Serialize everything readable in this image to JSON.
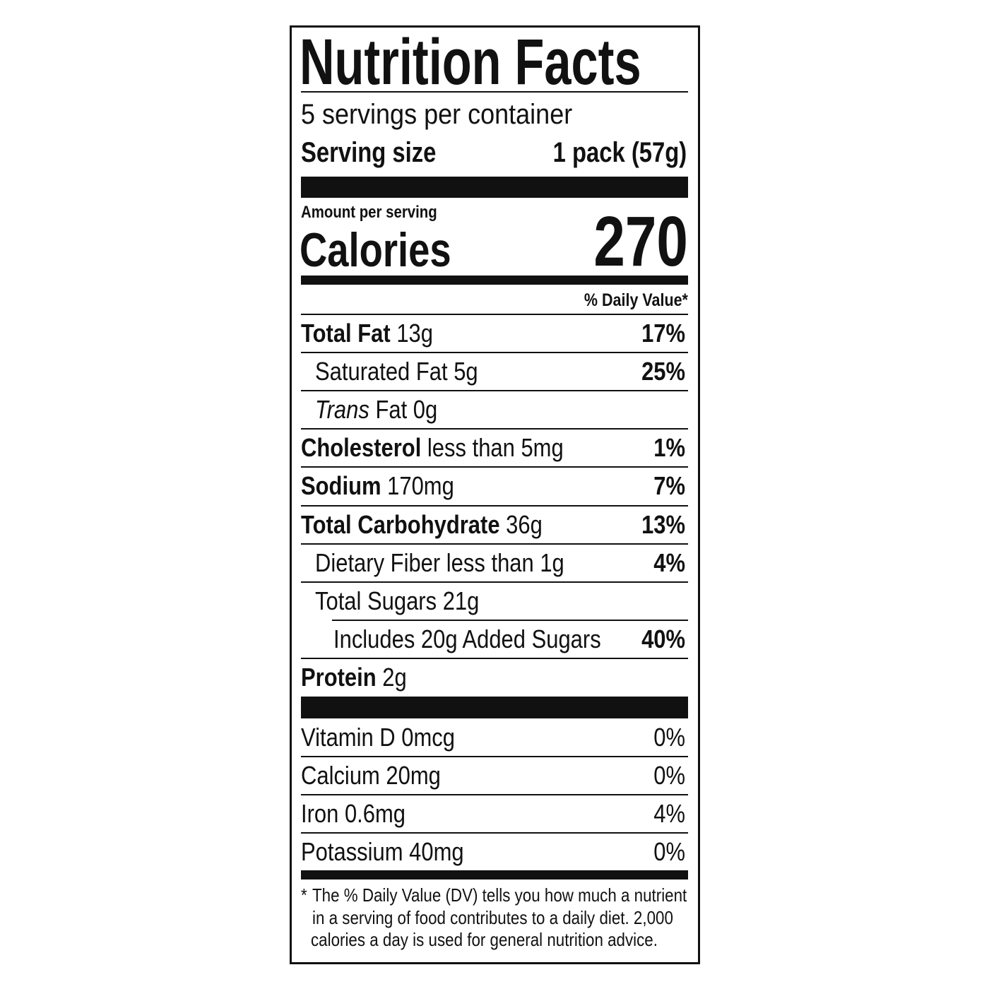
{
  "title": "Nutrition Facts",
  "servings_per_container": "5 servings per container",
  "serving_size_label": "Serving size",
  "serving_size_value": "1 pack (57g)",
  "amount_per_serving": "Amount per serving",
  "calories_label": "Calories",
  "calories_value": "270",
  "daily_value_header": "% Daily Value*",
  "nutrients": [
    {
      "name": "Total Fat",
      "amount": "13g",
      "dv": "17%"
    },
    {
      "name": "Saturated Fat 5g",
      "dv": "25%"
    },
    {
      "name_italic": "Trans",
      "name": "Fat 0g"
    },
    {
      "name": "Cholesterol",
      "amount": "less than 5mg",
      "dv": "1%"
    },
    {
      "name": "Sodium",
      "amount": "170mg",
      "dv": "7%"
    },
    {
      "name": "Total Carbohydrate",
      "amount": "36g",
      "dv": "13%"
    },
    {
      "name": "Dietary Fiber less than 1g",
      "dv": "4%"
    },
    {
      "name": "Total Sugars 21g"
    },
    {
      "name": "Includes 20g Added Sugars",
      "dv": "40%"
    },
    {
      "name": "Protein",
      "amount": "2g"
    }
  ],
  "vitamins": [
    {
      "name": "Vitamin D 0mcg",
      "dv": "0%"
    },
    {
      "name": "Calcium 20mg",
      "dv": "0%"
    },
    {
      "name": "Iron 0.6mg",
      "dv": "4%"
    },
    {
      "name": "Potassium 40mg",
      "dv": "0%"
    }
  ],
  "footnote": {
    "asterisk": "*",
    "lines": [
      "The % Daily Value (DV) tells you how much a nutrient",
      "in a serving of food contributes to a daily diet. 2,000",
      "calories a day is used for general nutrition advice."
    ]
  }
}
